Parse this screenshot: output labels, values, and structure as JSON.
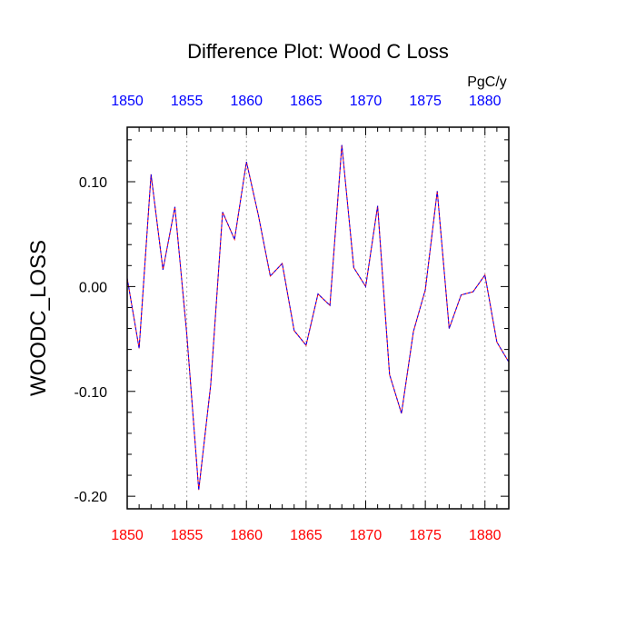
{
  "chart_data": {
    "type": "line",
    "title": "Difference Plot: Wood C Loss",
    "units": "PgC/y",
    "ylabel": "WOODC_LOSS",
    "xlabel": "",
    "xlim": [
      1850,
      1882
    ],
    "ylim": [
      -0.212,
      0.152
    ],
    "x_ticks": [
      "1850",
      "1855",
      "1860",
      "1865",
      "1870",
      "1875",
      "1880"
    ],
    "y_ticks": [
      "0.10",
      "0.00",
      "-0.10",
      "-0.20"
    ],
    "grid_x": true,
    "colors": {
      "bottom_ticks": "#ff0000",
      "top_ticks": "#0000ff",
      "line_solid": "#ff0000",
      "line_dash": "#0000ff",
      "grid": "#aaaaaa"
    },
    "series": [
      {
        "x": [
          1850,
          1851,
          1852,
          1853,
          1854,
          1855,
          1856,
          1857,
          1858,
          1859,
          1860,
          1861,
          1862,
          1863,
          1864,
          1865,
          1866,
          1867,
          1868,
          1869,
          1870,
          1871,
          1872,
          1873,
          1874,
          1875,
          1876,
          1877,
          1878,
          1879,
          1880,
          1881,
          1882
        ],
        "values": [
          0.008,
          -0.059,
          0.107,
          0.016,
          0.076,
          -0.046,
          -0.194,
          -0.094,
          0.071,
          0.045,
          0.119,
          0.068,
          0.01,
          0.022,
          -0.042,
          -0.056,
          -0.007,
          -0.018,
          0.135,
          0.018,
          0.0,
          0.077,
          -0.084,
          -0.121,
          -0.043,
          -0.003,
          0.091,
          -0.04,
          -0.008,
          -0.005,
          0.011,
          -0.053,
          -0.072
        ]
      }
    ]
  }
}
